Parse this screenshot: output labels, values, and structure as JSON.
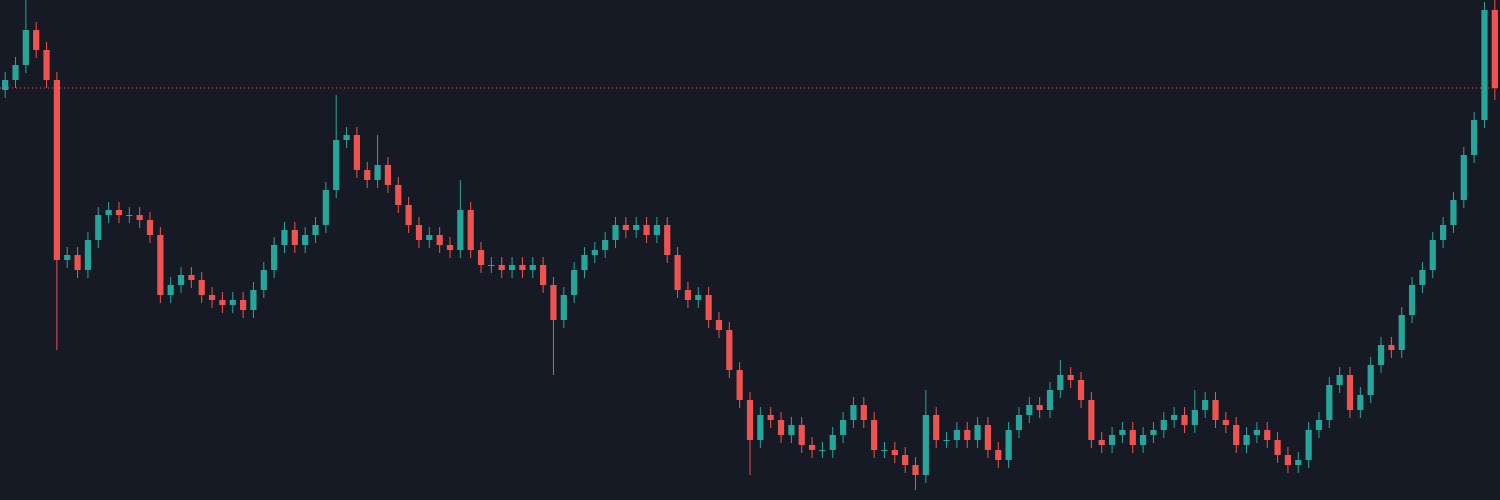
{
  "chart_data": {
    "type": "candlestick",
    "open": [
      410,
      420,
      435,
      470,
      450,
      420,
      240,
      245,
      230,
      260,
      285,
      290,
      285,
      285,
      280,
      265,
      205,
      215,
      225,
      220,
      205,
      200,
      195,
      200,
      190,
      210,
      230,
      255,
      270,
      255,
      265,
      275,
      310,
      360,
      365,
      330,
      320,
      335,
      315,
      295,
      275,
      260,
      265,
      255,
      250,
      290,
      250,
      235,
      235,
      230,
      235,
      230,
      235,
      215,
      180,
      205,
      230,
      245,
      250,
      260,
      275,
      270,
      275,
      265,
      275,
      245,
      210,
      200,
      205,
      180,
      170,
      130,
      100,
      60,
      85,
      80,
      65,
      75,
      55,
      50,
      50,
      65,
      80,
      95,
      80,
      50,
      50,
      45,
      35,
      25,
      85,
      60,
      60,
      70,
      60,
      75,
      50,
      40,
      70,
      85,
      95,
      90,
      110,
      125,
      120,
      100,
      60,
      55,
      65,
      70,
      55,
      65,
      70,
      80,
      85,
      75,
      90,
      100,
      80,
      75,
      55,
      65,
      70,
      60,
      45,
      35,
      40,
      70,
      80,
      115,
      125,
      90,
      105,
      135,
      155,
      150,
      185,
      215,
      230,
      260,
      275,
      300,
      345,
      380,
      490
    ],
    "high": [
      428,
      443,
      500,
      478,
      458,
      428,
      253,
      253,
      268,
      293,
      298,
      298,
      293,
      293,
      288,
      273,
      223,
      233,
      233,
      228,
      213,
      208,
      208,
      208,
      218,
      238,
      263,
      278,
      278,
      273,
      283,
      318,
      405,
      373,
      373,
      338,
      365,
      343,
      323,
      303,
      283,
      273,
      273,
      263,
      320,
      298,
      258,
      243,
      243,
      243,
      243,
      243,
      243,
      223,
      213,
      238,
      253,
      258,
      268,
      283,
      283,
      283,
      283,
      283,
      283,
      253,
      218,
      213,
      213,
      188,
      178,
      138,
      108,
      93,
      93,
      88,
      83,
      83,
      63,
      58,
      73,
      88,
      103,
      103,
      88,
      58,
      58,
      53,
      43,
      110,
      93,
      68,
      78,
      78,
      83,
      83,
      58,
      78,
      93,
      103,
      103,
      118,
      140,
      133,
      128,
      108,
      68,
      73,
      78,
      78,
      73,
      78,
      88,
      93,
      93,
      110,
      108,
      108,
      88,
      83,
      73,
      78,
      78,
      68,
      53,
      48,
      78,
      88,
      123,
      133,
      133,
      113,
      143,
      163,
      163,
      193,
      223,
      238,
      268,
      283,
      308,
      353,
      388,
      498,
      500
    ],
    "low": [
      402,
      412,
      427,
      442,
      412,
      150,
      232,
      222,
      222,
      252,
      277,
      277,
      277,
      272,
      257,
      197,
      197,
      207,
      212,
      197,
      192,
      187,
      187,
      182,
      182,
      202,
      222,
      247,
      247,
      247,
      257,
      267,
      302,
      352,
      322,
      312,
      312,
      307,
      287,
      267,
      252,
      252,
      247,
      242,
      242,
      242,
      227,
      227,
      222,
      222,
      222,
      222,
      207,
      125,
      172,
      197,
      222,
      237,
      242,
      252,
      262,
      262,
      257,
      257,
      237,
      202,
      192,
      192,
      172,
      162,
      122,
      92,
      25,
      52,
      72,
      57,
      57,
      47,
      42,
      42,
      42,
      57,
      72,
      72,
      42,
      42,
      37,
      27,
      10,
      17,
      52,
      52,
      52,
      52,
      52,
      42,
      32,
      32,
      62,
      77,
      82,
      82,
      102,
      112,
      92,
      52,
      47,
      47,
      57,
      47,
      47,
      57,
      62,
      72,
      67,
      67,
      82,
      72,
      67,
      47,
      47,
      57,
      52,
      37,
      27,
      27,
      32,
      62,
      72,
      107,
      82,
      82,
      97,
      127,
      142,
      142,
      177,
      207,
      222,
      252,
      267,
      292,
      337,
      372,
      400
    ],
    "close": [
      420,
      435,
      470,
      450,
      420,
      240,
      245,
      230,
      260,
      285,
      290,
      285,
      285,
      280,
      265,
      205,
      215,
      225,
      220,
      205,
      200,
      195,
      200,
      190,
      210,
      230,
      255,
      270,
      255,
      265,
      275,
      310,
      360,
      365,
      330,
      320,
      335,
      315,
      295,
      275,
      260,
      265,
      255,
      250,
      290,
      250,
      235,
      235,
      230,
      235,
      230,
      235,
      215,
      180,
      205,
      230,
      245,
      250,
      260,
      275,
      270,
      275,
      265,
      275,
      245,
      210,
      200,
      205,
      180,
      170,
      130,
      100,
      60,
      85,
      80,
      65,
      75,
      55,
      50,
      50,
      65,
      80,
      95,
      80,
      50,
      50,
      45,
      35,
      25,
      85,
      60,
      60,
      70,
      60,
      75,
      50,
      40,
      70,
      85,
      95,
      90,
      110,
      125,
      120,
      100,
      60,
      55,
      65,
      70,
      55,
      65,
      70,
      80,
      85,
      75,
      90,
      100,
      80,
      75,
      55,
      65,
      70,
      60,
      45,
      35,
      40,
      70,
      80,
      115,
      125,
      90,
      105,
      135,
      155,
      150,
      185,
      215,
      230,
      260,
      275,
      300,
      345,
      380,
      490,
      412
    ],
    "up_color": "#26a69a",
    "down_color": "#ef5350",
    "ylim": [
      0,
      500
    ],
    "price_line": 412,
    "price_line_color": "#ef5350"
  }
}
